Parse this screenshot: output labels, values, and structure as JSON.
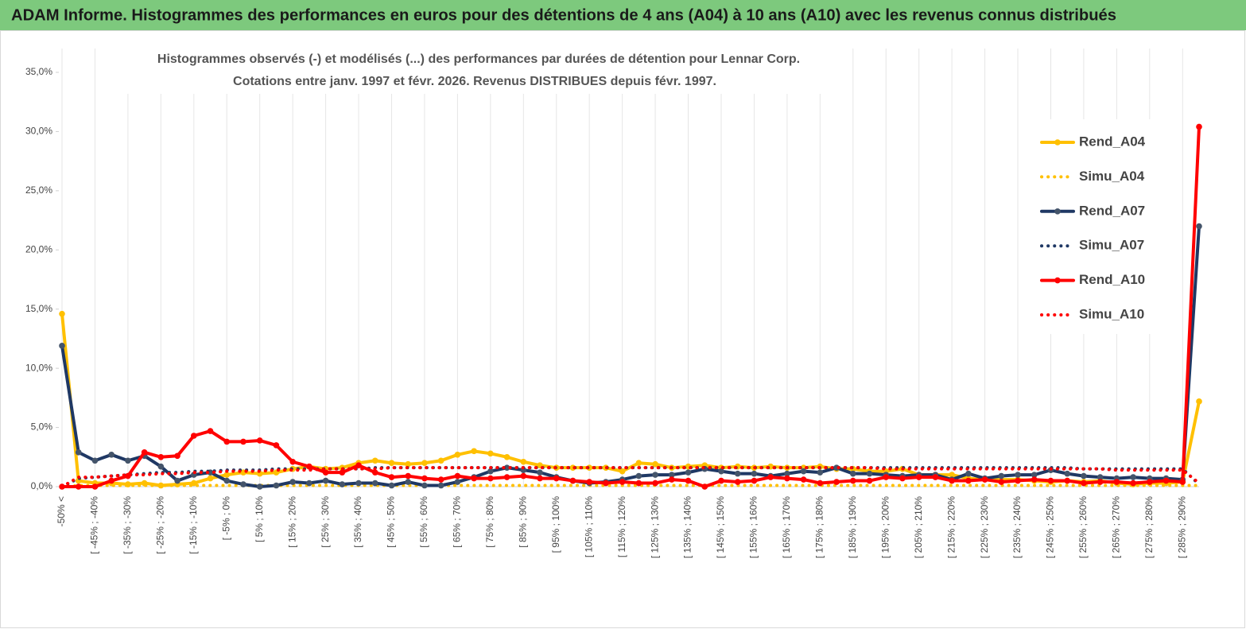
{
  "header": {
    "title": "ADAM Informe. Histogrammes des performances en euros pour des détentions de 4 ans (A04) à 10 ans (A10) avec les revenus connus distribués"
  },
  "chart_data": {
    "type": "line",
    "title": "Histogrammes observés (-)  et modélisés (...) des performances par durées de détention pour Lennar Corp.",
    "subtitle": "Cotations entre janv. 1997  et févr. 2026. Revenus DISTRIBUES depuis févr. 1997.",
    "categories": [
      "-50% <",
      null,
      "[ -45% ; -40%",
      null,
      "[ -35% ; -30%",
      null,
      "[ -25% ; -20%",
      null,
      "[ -15% ; -10%",
      null,
      "[ -5% ; 0%",
      null,
      "[ 5% ; 10%",
      null,
      "[ 15% ; 20%",
      null,
      "[ 25% ; 30%",
      null,
      "[ 35% ; 40%",
      null,
      "[ 45% ; 50%",
      null,
      "[ 55% ; 60%",
      null,
      "[ 65% ; 70%",
      null,
      "[ 75% ; 80%",
      null,
      "[ 85% ; 90%",
      null,
      "[ 95% ; 100%",
      null,
      "[ 105% ; 110%",
      null,
      "[ 115% ; 120%",
      null,
      "[ 125% ; 130%",
      null,
      "[ 135% ; 140%",
      null,
      "[ 145% ; 150%",
      null,
      "[ 155% ; 160%",
      null,
      "[ 165% ; 170%",
      null,
      "[ 175% ; 180%",
      null,
      "[ 185% ; 190%",
      null,
      "[ 195% ; 200%",
      null,
      "[ 205% ; 210%",
      null,
      "[ 215% ; 220%",
      null,
      "[ 225% ; 230%",
      null,
      "[ 235% ; 240%",
      null,
      "[ 245% ; 250%",
      null,
      "[ 255% ; 260%",
      null,
      "[ 265% ; 270%",
      null,
      "[ 275% ; 280%",
      null,
      "[ 285% ; 290%",
      null
    ],
    "ylim": [
      0,
      35
    ],
    "yticks": [
      {
        "value": 0,
        "label": "0,0%"
      },
      {
        "value": 5,
        "label": "5,0%"
      },
      {
        "value": 10,
        "label": "10,0%"
      },
      {
        "value": 15,
        "label": "15,0%"
      },
      {
        "value": 20,
        "label": "20,0%"
      },
      {
        "value": 25,
        "label": "25,0%"
      },
      {
        "value": 30,
        "label": "30,0%"
      },
      {
        "value": 35,
        "label": "35,0%"
      }
    ],
    "grid": "x",
    "legend": "right",
    "series": [
      {
        "name": "Rend_A04",
        "color": "#ffc000",
        "style": "solid",
        "marker": true,
        "values": [
          14.6,
          0.5,
          0.3,
          0.3,
          0.2,
          0.3,
          0.1,
          0.2,
          0.3,
          0.7,
          1.0,
          1.2,
          1.1,
          1.2,
          1.5,
          1.7,
          1.5,
          1.6,
          2.0,
          2.2,
          2.0,
          1.9,
          2.0,
          2.2,
          2.7,
          3.0,
          2.8,
          2.5,
          2.1,
          1.8,
          1.6,
          1.6,
          1.6,
          1.6,
          1.3,
          2.0,
          1.9,
          1.6,
          1.7,
          1.8,
          1.6,
          1.7,
          1.6,
          1.7,
          1.6,
          1.6,
          1.7,
          1.5,
          1.5,
          1.3,
          1.3,
          1.5,
          1.0,
          1.0,
          1.0,
          0.7,
          0.6,
          0.6,
          0.6,
          0.5,
          0.4,
          0.5,
          0.4,
          0.5,
          0.3,
          0.2,
          0.3,
          0.3,
          0.4,
          7.2
        ]
      },
      {
        "name": "Simu_A04",
        "color": "#ffc000",
        "style": "dotted",
        "marker": false,
        "values": [
          0.0,
          0.1,
          0.1,
          0.1,
          0.1,
          0.1,
          0.1,
          0.1,
          0.1,
          0.1,
          0.1,
          0.1,
          0.1,
          0.1,
          0.1,
          0.1,
          0.1,
          0.1,
          0.1,
          0.1,
          0.1,
          0.1,
          0.1,
          0.1,
          0.1,
          0.1,
          0.1,
          0.1,
          0.1,
          0.1,
          0.1,
          0.1,
          0.1,
          0.1,
          0.1,
          0.1,
          0.1,
          0.1,
          0.1,
          0.1,
          0.1,
          0.1,
          0.1,
          0.1,
          0.1,
          0.1,
          0.1,
          0.1,
          0.1,
          0.1,
          0.1,
          0.1,
          0.1,
          0.1,
          0.1,
          0.1,
          0.1,
          0.1,
          0.1,
          0.1,
          0.1,
          0.1,
          0.1,
          0.1,
          0.1,
          0.1,
          0.1,
          0.1,
          0.1,
          0.1
        ]
      },
      {
        "name": "Rend_A07",
        "color": "#1f3864",
        "style": "solid",
        "marker": true,
        "values": [
          11.9,
          2.9,
          2.2,
          2.7,
          2.2,
          2.6,
          1.7,
          0.5,
          1.0,
          1.2,
          0.5,
          0.2,
          0.0,
          0.1,
          0.4,
          0.3,
          0.5,
          0.2,
          0.3,
          0.3,
          0.1,
          0.4,
          0.1,
          0.1,
          0.4,
          0.8,
          1.3,
          1.6,
          1.4,
          1.2,
          0.8,
          0.5,
          0.3,
          0.4,
          0.6,
          0.9,
          1.0,
          1.0,
          1.2,
          1.5,
          1.3,
          1.1,
          1.1,
          0.9,
          1.1,
          1.3,
          1.2,
          1.6,
          1.1,
          1.1,
          1.0,
          0.9,
          1.0,
          1.0,
          0.6,
          1.1,
          0.7,
          0.9,
          1.0,
          1.0,
          1.4,
          1.1,
          0.9,
          0.8,
          0.7,
          0.8,
          0.7,
          0.7,
          0.6,
          22.0
        ]
      },
      {
        "name": "Simu_A07",
        "color": "#1f3864",
        "style": "dotted",
        "marker": false,
        "values": [
          0.0,
          0.7,
          0.8,
          0.9,
          1.0,
          1.1,
          1.2,
          1.2,
          1.3,
          1.3,
          1.4,
          1.4,
          1.4,
          1.5,
          1.5,
          1.5,
          1.5,
          1.5,
          1.5,
          1.6,
          1.6,
          1.6,
          1.6,
          1.6,
          1.6,
          1.6,
          1.6,
          1.6,
          1.6,
          1.6,
          1.6,
          1.6,
          1.6,
          1.6,
          1.6,
          1.6,
          1.6,
          1.6,
          1.6,
          1.6,
          1.6,
          1.6,
          1.6,
          1.6,
          1.6,
          1.6,
          1.6,
          1.6,
          1.6,
          1.6,
          1.6,
          1.6,
          1.6,
          1.6,
          1.6,
          1.6,
          1.6,
          1.6,
          1.6,
          1.6,
          1.6,
          1.6,
          1.5,
          1.5,
          1.5,
          1.5,
          1.5,
          1.5,
          1.5,
          0.2
        ]
      },
      {
        "name": "Rend_A10",
        "color": "#ff0000",
        "style": "solid",
        "marker": true,
        "values": [
          0.0,
          0.0,
          0.0,
          0.5,
          0.9,
          2.9,
          2.5,
          2.6,
          4.3,
          4.7,
          3.8,
          3.8,
          3.9,
          3.5,
          2.1,
          1.7,
          1.2,
          1.2,
          1.8,
          1.2,
          0.8,
          0.9,
          0.7,
          0.6,
          0.9,
          0.7,
          0.7,
          0.8,
          0.9,
          0.7,
          0.7,
          0.5,
          0.4,
          0.3,
          0.4,
          0.3,
          0.3,
          0.6,
          0.5,
          0.0,
          0.5,
          0.4,
          0.5,
          0.8,
          0.7,
          0.6,
          0.3,
          0.4,
          0.5,
          0.5,
          0.8,
          0.7,
          0.8,
          0.8,
          0.5,
          0.5,
          0.6,
          0.4,
          0.5,
          0.6,
          0.5,
          0.5,
          0.3,
          0.4,
          0.4,
          0.3,
          0.4,
          0.5,
          0.4,
          30.4
        ]
      },
      {
        "name": "Simu_A10",
        "color": "#ff0000",
        "style": "dotted",
        "marker": false,
        "values": [
          0.0,
          0.8,
          0.8,
          0.9,
          1.0,
          1.0,
          1.1,
          1.1,
          1.2,
          1.2,
          1.3,
          1.3,
          1.3,
          1.4,
          1.4,
          1.4,
          1.5,
          1.5,
          1.5,
          1.5,
          1.6,
          1.6,
          1.6,
          1.6,
          1.6,
          1.6,
          1.6,
          1.6,
          1.6,
          1.6,
          1.6,
          1.6,
          1.6,
          1.6,
          1.6,
          1.6,
          1.6,
          1.6,
          1.6,
          1.6,
          1.6,
          1.6,
          1.6,
          1.6,
          1.6,
          1.6,
          1.6,
          1.6,
          1.6,
          1.6,
          1.5,
          1.5,
          1.5,
          1.5,
          1.5,
          1.5,
          1.5,
          1.5,
          1.5,
          1.5,
          1.5,
          1.5,
          1.5,
          1.5,
          1.4,
          1.4,
          1.4,
          1.4,
          1.4,
          0.3
        ]
      }
    ]
  }
}
